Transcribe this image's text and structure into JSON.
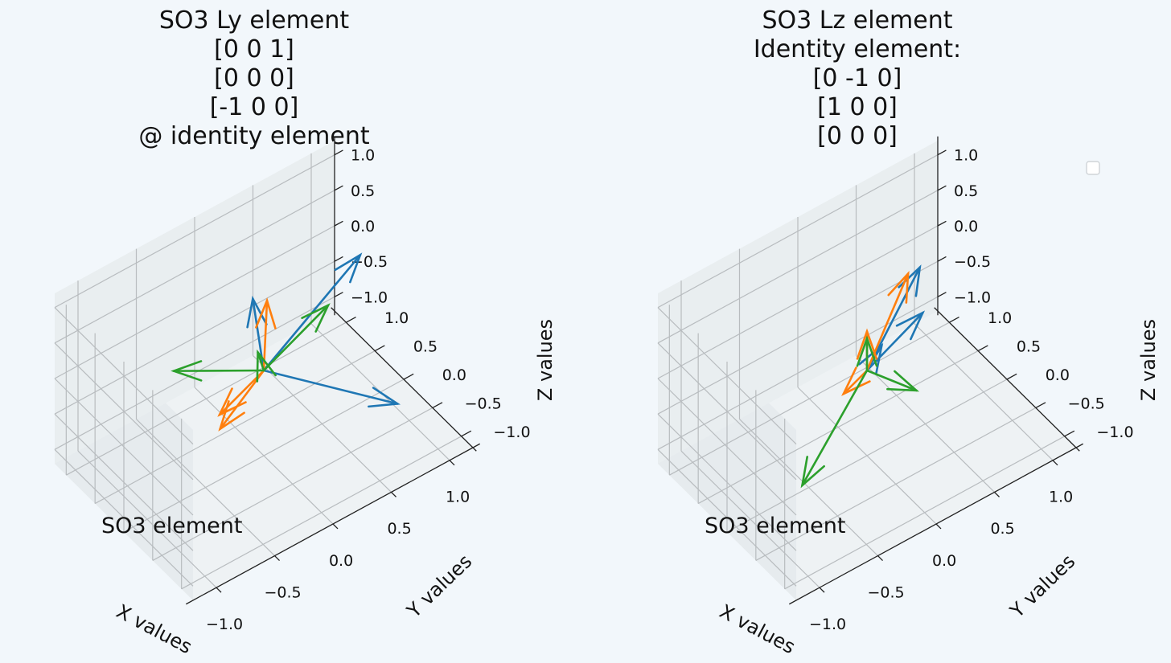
{
  "colors": {
    "background": "#f2f7fb",
    "pane_xz": "#e6ebee",
    "pane_yz": "#e9eef0",
    "pane_floor": "#eef2f4",
    "grid": "#b8bcbf",
    "blue": "#1f77b4",
    "orange": "#ff7f0e",
    "green": "#2ca02c"
  },
  "chart_data": [
    {
      "type": "quiver3d",
      "title_lines": [
        "SO3 Ly element",
        "[0 0  1]",
        "[0 0 0]",
        "[-1 0  0]",
        "@ identity element"
      ],
      "xlabel": "X values",
      "ylabel": "Y values",
      "zlabel": "Z values",
      "xlim": [
        -1.2,
        1.2
      ],
      "ylim": [
        -1.2,
        1.2
      ],
      "zlim": [
        -1.2,
        1.2
      ],
      "xticks": [
        "−1.0",
        "−0.5",
        "0.0",
        "0.5",
        "1.0"
      ],
      "yticks": [
        "−1.0",
        "−0.5",
        "0.0",
        "0.5",
        "1.0"
      ],
      "zticks": [
        "−1.0",
        "−0.5",
        "0.0",
        "0.5",
        "1.0"
      ],
      "annotation": "SO3 element",
      "legend": false,
      "origin": [
        0,
        0,
        0
      ],
      "vectors": [
        {
          "color": "blue",
          "end": [
            1.0,
            0.35,
            0.45
          ]
        },
        {
          "color": "blue",
          "end": [
            0.4,
            1.0,
            -0.15
          ]
        },
        {
          "color": "blue",
          "end": [
            0.85,
            -0.6,
            -0.75
          ]
        },
        {
          "color": "orange",
          "end": [
            -0.75,
            -0.75,
            0.65
          ]
        },
        {
          "color": "orange",
          "end": [
            0.25,
            0.45,
            0.4
          ]
        },
        {
          "color": "orange",
          "end": [
            -0.35,
            0.05,
            -0.55
          ]
        },
        {
          "color": "green",
          "end": [
            -0.15,
            -0.2,
            0.55
          ]
        },
        {
          "color": "green",
          "end": [
            0.7,
            0.3,
            0.05
          ]
        },
        {
          "color": "green",
          "end": [
            -0.5,
            0.55,
            0.0
          ]
        }
      ]
    },
    {
      "type": "quiver3d",
      "title_lines": [
        "SO3 Lz element",
        "Identity element:",
        "[0 -1  0]",
        "[1  0  0]",
        "[0  0  0]"
      ],
      "xlabel": "X values",
      "ylabel": "Y values",
      "zlabel": "Z values",
      "xlim": [
        -1.2,
        1.2
      ],
      "ylim": [
        -1.2,
        1.2
      ],
      "zlim": [
        -1.2,
        1.2
      ],
      "xticks": [
        "−1.0",
        "−0.5",
        "0.0",
        "0.5",
        "1.0"
      ],
      "yticks": [
        "−1.0",
        "−0.5",
        "0.0",
        "0.5",
        "1.0"
      ],
      "zticks": [
        "−1.0",
        "−0.5",
        "0.0",
        "0.5",
        "1.0"
      ],
      "annotation": "SO3 element",
      "legend": true,
      "origin": [
        0,
        0,
        0
      ],
      "vectors": [
        {
          "color": "blue",
          "end": [
            0.75,
            0.55,
            -0.3
          ]
        },
        {
          "color": "blue",
          "end": [
            0.75,
            0.6,
            0.3
          ]
        },
        {
          "color": "blue",
          "end": [
            0.2,
            0.15,
            0.05
          ]
        },
        {
          "color": "orange",
          "end": [
            0.0,
            0.0,
            0.55
          ]
        },
        {
          "color": "orange",
          "end": [
            -0.3,
            -0.2,
            0.1
          ]
        },
        {
          "color": "orange",
          "end": [
            0.55,
            0.4,
            0.55
          ]
        },
        {
          "color": "green",
          "end": [
            -1.0,
            -0.9,
            0.0
          ]
        },
        {
          "color": "green",
          "end": [
            0.0,
            0.0,
            0.45
          ]
        },
        {
          "color": "green",
          "end": [
            0.3,
            -0.25,
            -0.35
          ]
        }
      ]
    }
  ]
}
